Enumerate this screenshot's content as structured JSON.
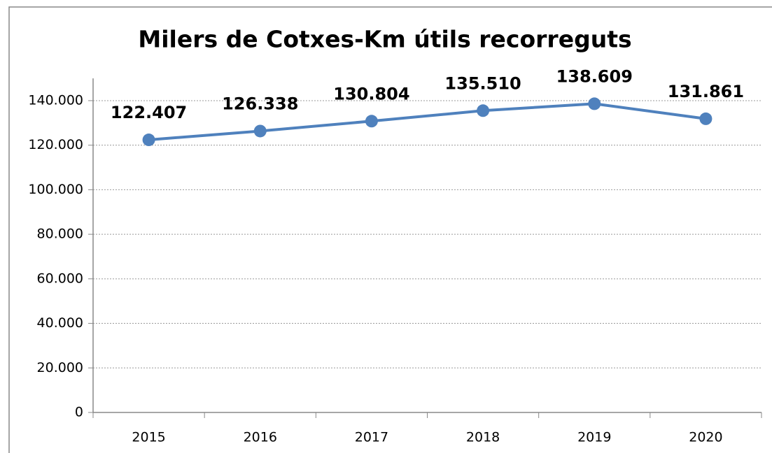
{
  "chart_data": {
    "type": "line",
    "title": "Milers de Cotxes-Km útils recorreguts",
    "categories": [
      "2015",
      "2016",
      "2017",
      "2018",
      "2019",
      "2020"
    ],
    "series": [
      {
        "name": "Milers de Cotxes-Km útils recorreguts",
        "color": "#4f81bd",
        "values": [
          122407,
          126338,
          130804,
          135510,
          138609,
          131861
        ],
        "value_labels": [
          "122.407",
          "126.338",
          "130.804",
          "135.510",
          "138.609",
          "131.861"
        ]
      }
    ],
    "ylim": [
      0,
      150000
    ],
    "yticks": [
      0,
      {
        "value": 20000,
        "label": "20.000"
      },
      {
        "value": 40000,
        "label": "40.000"
      },
      {
        "value": 60000,
        "label": "60.000"
      },
      {
        "value": 80000,
        "label": "80.000"
      },
      {
        "value": 100000,
        "label": "100.000"
      },
      {
        "value": 120000,
        "label": "120.000"
      },
      {
        "value": 140000,
        "label": "140.000"
      }
    ],
    "grid": true
  }
}
